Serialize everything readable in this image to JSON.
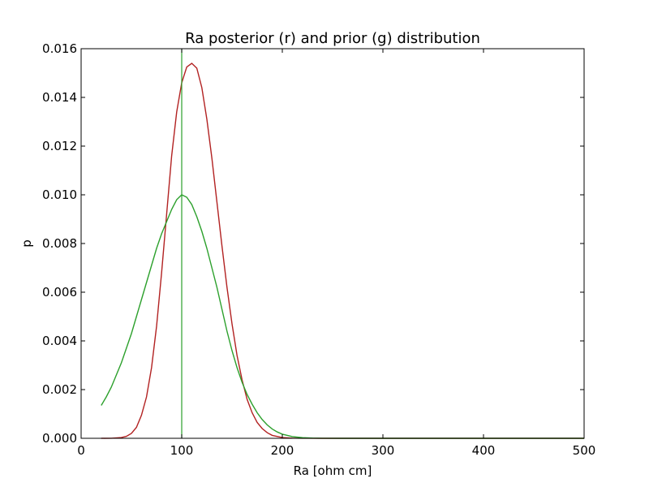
{
  "chart_data": {
    "type": "line",
    "title": "Ra posterior (r) and prior (g) distribution",
    "xlabel": "Ra [ohm cm]",
    "ylabel": "p",
    "xlim": [
      0,
      500
    ],
    "ylim": [
      0,
      0.016
    ],
    "xticks": [
      "0",
      "100",
      "200",
      "300",
      "400",
      "500"
    ],
    "yticks": [
      "0.000",
      "0.002",
      "0.004",
      "0.006",
      "0.008",
      "0.010",
      "0.012",
      "0.014",
      "0.016"
    ],
    "grid": false,
    "legend": "none",
    "series": [
      {
        "color": "#b22222",
        "x": [
          20,
          30,
          40,
          45,
          50,
          55,
          60,
          65,
          70,
          75,
          80,
          85,
          90,
          95,
          100,
          105,
          110,
          115,
          120,
          125,
          130,
          135,
          140,
          145,
          150,
          155,
          160,
          165,
          170,
          175,
          180,
          185,
          190,
          200,
          210,
          220,
          240,
          260,
          300,
          400,
          500
        ],
        "y": [
          0,
          2e-06,
          3e-05,
          8e-05,
          0.0002,
          0.00045,
          0.00095,
          0.0017,
          0.0029,
          0.0046,
          0.0068,
          0.0092,
          0.0116,
          0.0134,
          0.0146,
          0.01525,
          0.0154,
          0.0152,
          0.0144,
          0.0131,
          0.0115,
          0.0097,
          0.0079,
          0.0062,
          0.0047,
          0.0034,
          0.0024,
          0.0016,
          0.00105,
          0.00065,
          0.0004,
          0.00023,
          0.00012,
          3e-05,
          6e-06,
          1e-06,
          0,
          0,
          0,
          0,
          0
        ]
      },
      {
        "color": "#2ca02c",
        "x": [
          20,
          25,
          30,
          35,
          40,
          45,
          50,
          55,
          60,
          65,
          70,
          75,
          80,
          85,
          90,
          95,
          100,
          105,
          110,
          115,
          120,
          125,
          130,
          135,
          140,
          145,
          150,
          155,
          160,
          165,
          170,
          175,
          180,
          185,
          190,
          195,
          200,
          210,
          220,
          230,
          240,
          260,
          280,
          300,
          400,
          500
        ],
        "y": [
          0.00135,
          0.0017,
          0.0021,
          0.0026,
          0.0031,
          0.0037,
          0.0043,
          0.005,
          0.0057,
          0.0064,
          0.0071,
          0.0078,
          0.0084,
          0.0089,
          0.0094,
          0.0098,
          0.01,
          0.0099,
          0.0096,
          0.0091,
          0.0085,
          0.0078,
          0.007,
          0.0062,
          0.0053,
          0.0044,
          0.0036,
          0.0029,
          0.0023,
          0.0018,
          0.0014,
          0.00105,
          0.00077,
          0.00055,
          0.00038,
          0.00026,
          0.00017,
          7e-05,
          2.5e-05,
          8e-06,
          2e-06,
          0,
          0,
          0,
          0,
          0
        ]
      }
    ],
    "vline": {
      "x": 100,
      "color": "#2ca02c"
    }
  }
}
